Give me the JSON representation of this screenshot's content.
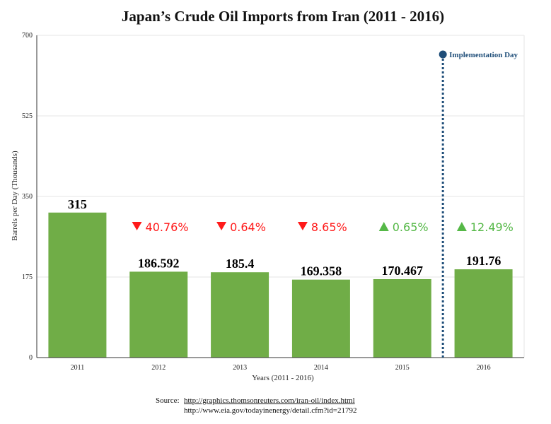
{
  "chart_data": {
    "type": "bar",
    "title": "Japan’s Crude Oil Imports from Iran (2011 - 2016)",
    "xlabel": "Years (2011 - 2016)",
    "ylabel": "Barrels per Day (Thousands)",
    "categories": [
      "2011",
      "2012",
      "2013",
      "2014",
      "2015",
      "2016"
    ],
    "values": [
      315,
      186.592,
      185.4,
      169.358,
      170.467,
      191.76
    ],
    "value_labels": [
      "315",
      "186.592",
      "185.4",
      "169.358",
      "170.467",
      "191.76"
    ],
    "ylim": [
      0,
      700
    ],
    "yticks": [
      0,
      175,
      350,
      525,
      700
    ],
    "ytick_labels": [
      "0",
      "175",
      "350",
      "525",
      "700"
    ],
    "grid": true,
    "changes": [
      {
        "category": "2012",
        "direction": "down",
        "label": "40.76%"
      },
      {
        "category": "2013",
        "direction": "down",
        "label": "0.64%"
      },
      {
        "category": "2014",
        "direction": "down",
        "label": "8.65%"
      },
      {
        "category": "2015",
        "direction": "up",
        "label": "0.65%"
      },
      {
        "category": "2016",
        "direction": "up",
        "label": "12.49%"
      }
    ],
    "annotation": {
      "label": "Implementation Day",
      "between": [
        "2015",
        "2016"
      ]
    }
  },
  "colors": {
    "bar": "#70ad47",
    "down": "#ff1a1a",
    "up": "#55b847",
    "annotation": "#1f4e79",
    "grid": "#e6e6e6",
    "axis": "#333333"
  },
  "source": {
    "label": "Source:",
    "links": [
      "http://graphics.thomsonreuters.com/iran-oil/index.html",
      "http://www.eia.gov/todayinenergy/detail.cfm?id=21792"
    ]
  }
}
